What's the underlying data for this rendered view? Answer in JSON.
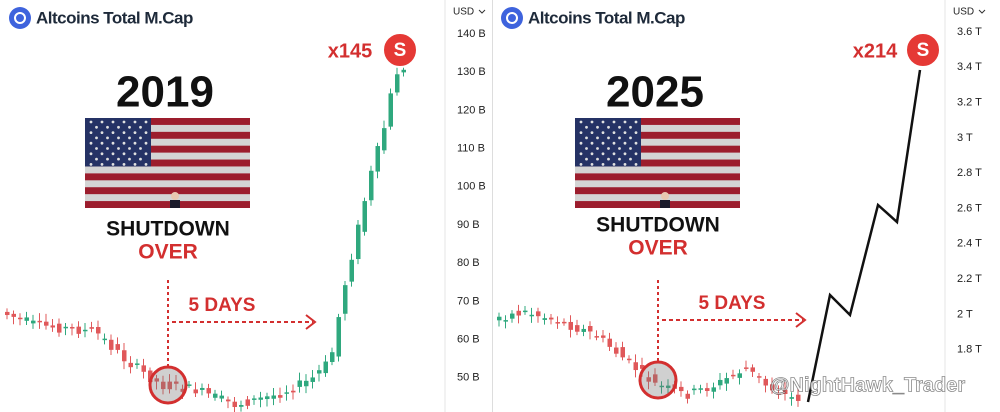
{
  "panels": [
    {
      "title": "Altcoins Total M.Cap",
      "year": "2019",
      "caption_top": "SHUTDOWN",
      "caption_bottom": "OVER",
      "duration": "5 DAYS",
      "multiplier": "x145",
      "badge": "S",
      "currency": "USD",
      "axis_ticks": [
        "140 B",
        "130 B",
        "120 B",
        "110 B",
        "100 B",
        "90 B",
        "80 B",
        "70 B",
        "60 B",
        "50 B"
      ]
    },
    {
      "title": "Altcoins Total M.Cap",
      "year": "2025",
      "caption_top": "SHUTDOWN",
      "caption_bottom": "OVER",
      "duration": "5 DAYS",
      "multiplier": "x214",
      "badge": "S",
      "currency": "USD",
      "axis_ticks": [
        "3.6 T",
        "3.4 T",
        "3.2 T",
        "3 T",
        "2.8 T",
        "2.6 T",
        "2.4 T",
        "2.2 T",
        "2 T",
        "1.8 T"
      ]
    }
  ],
  "watermark": "@NightHawk_Trader"
}
